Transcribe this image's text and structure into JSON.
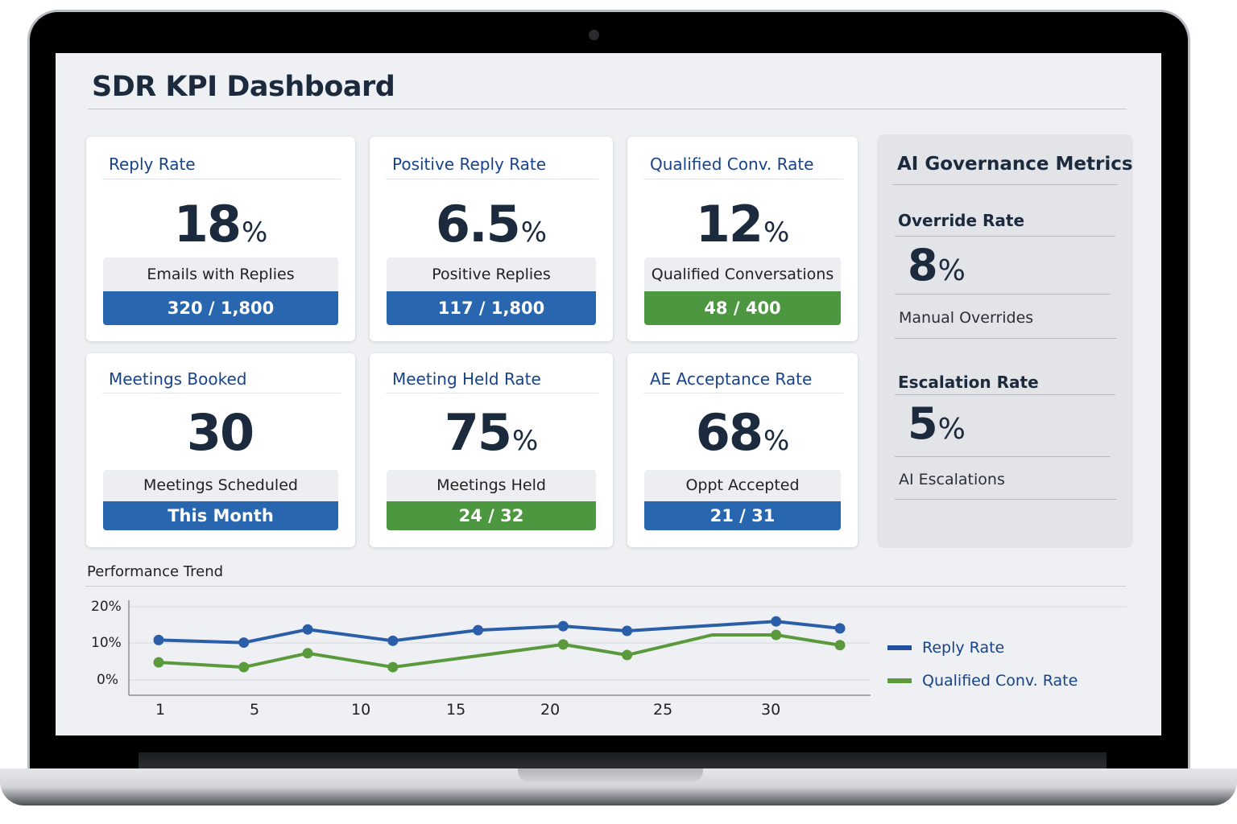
{
  "dashboard": {
    "title": "SDR KPI Dashboard"
  },
  "cards": [
    {
      "title": "Reply Rate",
      "value": "18",
      "unit": "%",
      "label": "Emails with Replies",
      "detail": "320 / 1,800",
      "band_color": "#2866b0"
    },
    {
      "title": "Positive Reply Rate",
      "value": "6.5",
      "unit": "%",
      "label": "Positive Replies",
      "detail": "117 / 1,800",
      "band_color": "#2866b0"
    },
    {
      "title": "Qualified Conv. Rate",
      "value": "12",
      "unit": "%",
      "label": "Qualified Conversations",
      "detail": "48 / 400",
      "band_color": "#4c973f"
    },
    {
      "title": "Meetings Booked",
      "value": "30",
      "unit": "",
      "label": "Meetings Scheduled",
      "detail": "This Month",
      "band_color": "#2866b0"
    },
    {
      "title": "Meeting Held Rate",
      "value": "75",
      "unit": "%",
      "label": "Meetings Held",
      "detail": "24 / 32",
      "band_color": "#4c973f"
    },
    {
      "title": "AE Acceptance Rate",
      "value": "68",
      "unit": "%",
      "label": "Oppt Accepted",
      "detail": "21 / 31",
      "band_color": "#2866b0"
    }
  ],
  "governance": {
    "title": "AI Governance Metrics",
    "metrics": [
      {
        "title": "Override Rate",
        "value": "8",
        "unit": "%",
        "label": "Manual Overrides"
      },
      {
        "title": "Escalation Rate",
        "value": "5",
        "unit": "%",
        "label": "AI Escalations"
      }
    ]
  },
  "trend": {
    "title": "Performance Trend",
    "y_ticks": [
      "20%",
      "10%",
      "0%"
    ],
    "x_ticks": [
      "1",
      "5",
      "10",
      "15",
      "20",
      "25",
      "30"
    ],
    "legend": [
      {
        "label": "Reply Rate",
        "color": "#2a5ea8"
      },
      {
        "label": "Qualified Conv. Rate",
        "color": "#5b9a3c"
      }
    ]
  },
  "colors": {
    "title_text": "#1c2a3d",
    "card_title": "#17438a",
    "blue": "#2866b0",
    "green": "#4c973f"
  },
  "chart_data": {
    "type": "line",
    "title": "Performance Trend",
    "xlabel": "",
    "ylabel": "",
    "ylim": [
      0,
      20
    ],
    "y_ticks": [
      "0%",
      "10%",
      "20%"
    ],
    "x_tick_labels": [
      "1",
      "5",
      "10",
      "15",
      "20",
      "25",
      "30"
    ],
    "grid": true,
    "legend_position": "right",
    "series": [
      {
        "name": "Reply Rate",
        "color": "#2a5ea8",
        "x": [
          1,
          5,
          8,
          12,
          16,
          20,
          23,
          30,
          33
        ],
        "values": [
          10.9,
          10.2,
          13.8,
          10.7,
          13.6,
          14.7,
          13.4,
          16.0,
          14.1
        ]
      },
      {
        "name": "Qualified Conv. Rate",
        "color": "#5b9a3c",
        "x": [
          1,
          5,
          8,
          12,
          20,
          23,
          27,
          30,
          33
        ],
        "values": [
          4.8,
          3.5,
          7.3,
          3.5,
          9.7,
          6.8,
          12.3,
          12.3,
          9.5
        ]
      }
    ]
  }
}
